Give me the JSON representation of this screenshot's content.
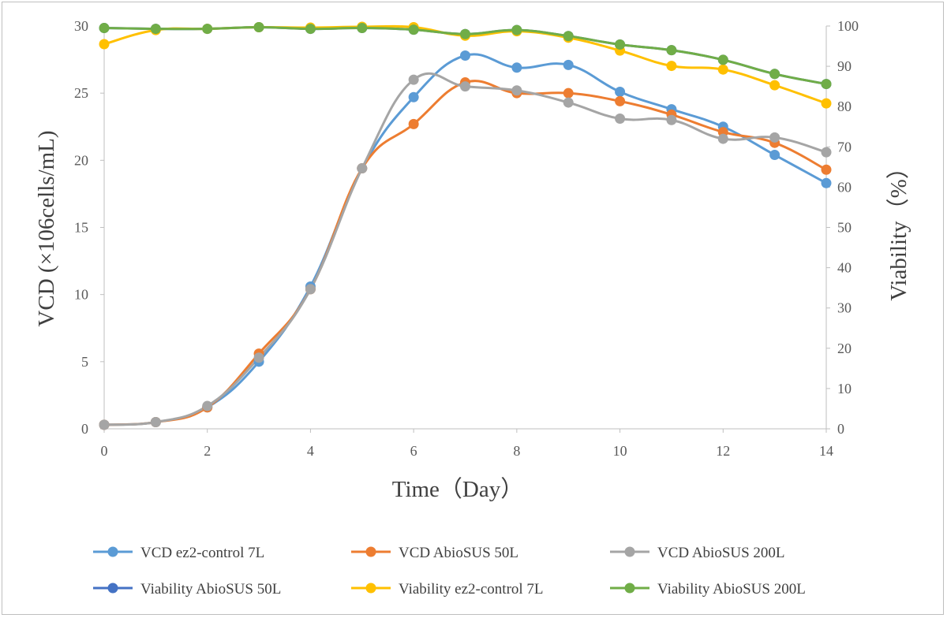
{
  "chart_data": {
    "type": "line",
    "xlabel": "Time（Day）",
    "ylabel": "VCD (×106cells/mL)",
    "y2label": "Viability（%）",
    "xlim": [
      0,
      14
    ],
    "ylim": [
      0,
      30
    ],
    "y2lim": [
      0,
      100
    ],
    "xticks": [
      "0",
      "2",
      "4",
      "6",
      "8",
      "10",
      "12",
      "14"
    ],
    "yticks": [
      "0",
      "5",
      "10",
      "15",
      "20",
      "25",
      "30"
    ],
    "y2ticks": [
      "0",
      "10",
      "20",
      "30",
      "40",
      "50",
      "60",
      "70",
      "80",
      "90",
      "100"
    ],
    "grid": false,
    "legend_position": "bottom",
    "x": [
      0,
      1,
      2,
      3,
      4,
      5,
      6,
      7,
      8,
      9,
      10,
      11,
      12,
      13,
      14
    ],
    "series": [
      {
        "name": "VCD ez2-control 7L",
        "axis": "left",
        "color": "#5b9bd5",
        "values": [
          0.3,
          0.5,
          1.6,
          5.0,
          10.6,
          19.4,
          24.7,
          27.8,
          26.9,
          27.1,
          25.1,
          23.8,
          22.5,
          20.4,
          18.3
        ]
      },
      {
        "name": "VCD AbioSUS 50L",
        "axis": "left",
        "color": "#ed7d31",
        "values": [
          0.3,
          0.5,
          1.6,
          5.6,
          10.4,
          19.4,
          22.7,
          25.8,
          25.0,
          25.0,
          24.4,
          23.4,
          22.1,
          21.3,
          19.3
        ]
      },
      {
        "name": "VCD AbioSUS 200L",
        "axis": "left",
        "color": "#a5a5a5",
        "values": [
          0.3,
          0.5,
          1.7,
          5.3,
          10.4,
          19.4,
          26.0,
          25.5,
          25.2,
          24.3,
          23.1,
          23.0,
          21.6,
          21.7,
          20.6
        ]
      },
      {
        "name": "Viability AbioSUS 50L",
        "axis": "right",
        "color": "#4472c4",
        "values": [
          99.5,
          99.3,
          99.3,
          99.7,
          99.3,
          99.5,
          99.1,
          98.0,
          99.0,
          97.5,
          95.4,
          94.0,
          91.6,
          88.1,
          85.6
        ]
      },
      {
        "name": "Viability ez2-control 7L",
        "axis": "right",
        "color": "#ffc000",
        "values": [
          95.5,
          99.0,
          99.3,
          99.7,
          99.6,
          99.8,
          99.7,
          97.6,
          98.7,
          97.1,
          93.9,
          90.1,
          89.2,
          85.3,
          80.8
        ]
      },
      {
        "name": "Viability AbioSUS 200L",
        "axis": "right",
        "color": "#70ad47",
        "values": [
          99.5,
          99.3,
          99.3,
          99.7,
          99.3,
          99.5,
          99.1,
          98.0,
          99.0,
          97.5,
          95.4,
          94.0,
          91.6,
          88.1,
          85.6
        ]
      }
    ]
  }
}
